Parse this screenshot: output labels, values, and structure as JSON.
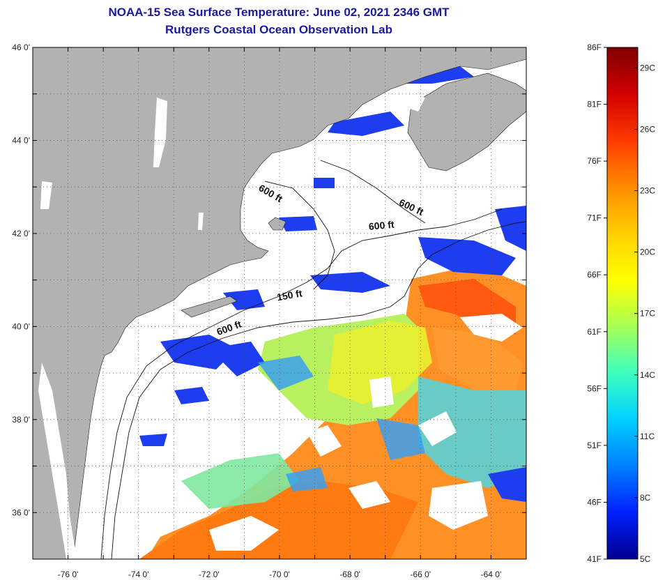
{
  "title": {
    "line1": "NOAA-15 Sea Surface Temperature:  June 02, 2021 2346 GMT",
    "line2": "Rutgers Coastal Ocean Observation Lab"
  },
  "map": {
    "lon_range": [
      -77,
      -63
    ],
    "lat_range": [
      35,
      46
    ],
    "lon_ticks": [
      {
        "value": -76,
        "label": "-76 0'"
      },
      {
        "value": -74,
        "label": "-74 0'"
      },
      {
        "value": -72,
        "label": "-72 0'"
      },
      {
        "value": -70,
        "label": "-70 0'"
      },
      {
        "value": -68,
        "label": "-68 0'"
      },
      {
        "value": -66,
        "label": "-66 0'"
      },
      {
        "value": -64,
        "label": "-64 0'"
      }
    ],
    "lat_ticks": [
      {
        "value": 46,
        "label": "46 0'"
      },
      {
        "value": 44,
        "label": "44 0'"
      },
      {
        "value": 42,
        "label": "42 0'"
      },
      {
        "value": 40,
        "label": "40 0'"
      },
      {
        "value": 38,
        "label": "38 0'"
      },
      {
        "value": 36,
        "label": "36 0'"
      }
    ],
    "contour_labels": [
      {
        "text": "600 ft",
        "lon": -70.3,
        "lat": 42.8
      },
      {
        "text": "600 ft",
        "lon": -66.3,
        "lat": 42.5
      },
      {
        "text": "600 ft",
        "lon": -67.1,
        "lat": 42.1
      },
      {
        "text": "150 ft",
        "lon": -69.7,
        "lat": 40.6
      },
      {
        "text": "600 ft",
        "lon": -71.4,
        "lat": 39.9
      }
    ],
    "colors": {
      "land": "#b2b2b2",
      "cloud": "#ffffff",
      "grid": "#555555"
    }
  },
  "colorbar": {
    "f_labels": [
      "86F",
      "81F",
      "76F",
      "71F",
      "66F",
      "61F",
      "56F",
      "51F",
      "46F",
      "41F"
    ],
    "c_labels": [
      "29C",
      "26C",
      "23C",
      "20C",
      "17C",
      "14C",
      "11C",
      "8C",
      "5C"
    ],
    "colors": [
      "#7f0000",
      "#d40000",
      "#ff3a00",
      "#ff8c00",
      "#ffd000",
      "#ffff00",
      "#a8ff55",
      "#3dffbf",
      "#00d0ff",
      "#0080ff",
      "#0020ff",
      "#00008f"
    ]
  }
}
